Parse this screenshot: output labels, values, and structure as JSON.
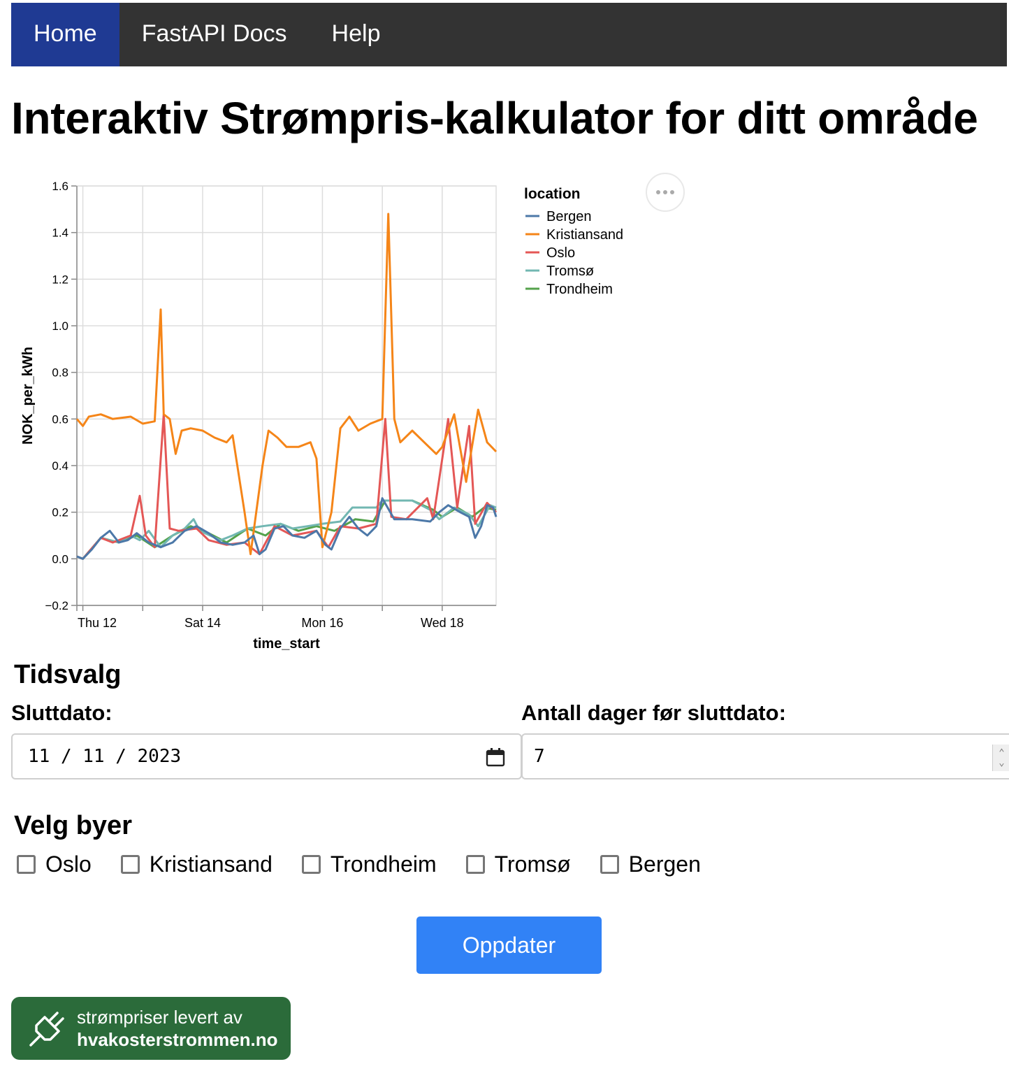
{
  "nav": {
    "items": [
      {
        "label": "Home",
        "active": true
      },
      {
        "label": "FastAPI Docs",
        "active": false
      },
      {
        "label": "Help",
        "active": false
      }
    ]
  },
  "page": {
    "title": "Interaktiv Strømpris-kalkulator for ditt område"
  },
  "chart_data": {
    "type": "line",
    "xlabel": "time_start",
    "ylabel": "NOK_per_kWh",
    "ylim": [
      -0.2,
      1.6
    ],
    "yticks": [
      "−0.2",
      "0.0",
      "0.2",
      "0.4",
      "0.6",
      "0.8",
      "1.0",
      "1.2",
      "1.4",
      "1.6"
    ],
    "xticks": [
      "Thu 12",
      "Sat 14",
      "Mon 16",
      "Wed 18"
    ],
    "x_range_days": [
      11.9,
      18.9
    ],
    "grid": true,
    "legend_title": "location",
    "legend_placement": "right",
    "series": [
      {
        "name": "Bergen",
        "color": "#4c78a8",
        "points": [
          [
            11.9,
            0.01
          ],
          [
            12.0,
            0.0
          ],
          [
            12.15,
            0.04
          ],
          [
            12.3,
            0.09
          ],
          [
            12.45,
            0.12
          ],
          [
            12.6,
            0.07
          ],
          [
            12.75,
            0.08
          ],
          [
            12.9,
            0.11
          ],
          [
            13.1,
            0.07
          ],
          [
            13.3,
            0.05
          ],
          [
            13.5,
            0.07
          ],
          [
            13.7,
            0.12
          ],
          [
            13.9,
            0.14
          ],
          [
            14.1,
            0.11
          ],
          [
            14.3,
            0.07
          ],
          [
            14.5,
            0.06
          ],
          [
            14.7,
            0.07
          ],
          [
            14.85,
            0.1
          ],
          [
            14.95,
            0.02
          ],
          [
            15.05,
            0.04
          ],
          [
            15.2,
            0.13
          ],
          [
            15.35,
            0.14
          ],
          [
            15.5,
            0.1
          ],
          [
            15.7,
            0.09
          ],
          [
            15.9,
            0.12
          ],
          [
            16.05,
            0.06
          ],
          [
            16.15,
            0.04
          ],
          [
            16.3,
            0.13
          ],
          [
            16.45,
            0.18
          ],
          [
            16.6,
            0.13
          ],
          [
            16.75,
            0.1
          ],
          [
            16.9,
            0.14
          ],
          [
            17.0,
            0.26
          ],
          [
            17.2,
            0.17
          ],
          [
            17.5,
            0.17
          ],
          [
            17.8,
            0.16
          ],
          [
            17.95,
            0.2
          ],
          [
            18.1,
            0.23
          ],
          [
            18.3,
            0.2
          ],
          [
            18.45,
            0.18
          ],
          [
            18.55,
            0.09
          ],
          [
            18.65,
            0.14
          ],
          [
            18.75,
            0.23
          ],
          [
            18.85,
            0.22
          ],
          [
            18.9,
            0.18
          ]
        ]
      },
      {
        "name": "Kristiansand",
        "color": "#f58518",
        "points": [
          [
            11.9,
            0.6
          ],
          [
            12.0,
            0.57
          ],
          [
            12.1,
            0.61
          ],
          [
            12.3,
            0.62
          ],
          [
            12.5,
            0.6
          ],
          [
            12.8,
            0.61
          ],
          [
            13.0,
            0.58
          ],
          [
            13.2,
            0.59
          ],
          [
            13.3,
            1.07
          ],
          [
            13.35,
            0.62
          ],
          [
            13.45,
            0.6
          ],
          [
            13.55,
            0.45
          ],
          [
            13.65,
            0.55
          ],
          [
            13.8,
            0.56
          ],
          [
            14.0,
            0.55
          ],
          [
            14.2,
            0.52
          ],
          [
            14.4,
            0.5
          ],
          [
            14.5,
            0.53
          ],
          [
            14.7,
            0.2
          ],
          [
            14.8,
            0.02
          ],
          [
            15.0,
            0.4
          ],
          [
            15.1,
            0.55
          ],
          [
            15.25,
            0.52
          ],
          [
            15.4,
            0.48
          ],
          [
            15.6,
            0.48
          ],
          [
            15.8,
            0.5
          ],
          [
            15.9,
            0.43
          ],
          [
            16.0,
            0.05
          ],
          [
            16.15,
            0.2
          ],
          [
            16.3,
            0.56
          ],
          [
            16.45,
            0.61
          ],
          [
            16.6,
            0.55
          ],
          [
            16.8,
            0.58
          ],
          [
            17.0,
            0.6
          ],
          [
            17.1,
            1.48
          ],
          [
            17.2,
            0.6
          ],
          [
            17.3,
            0.5
          ],
          [
            17.5,
            0.55
          ],
          [
            17.7,
            0.5
          ],
          [
            17.9,
            0.45
          ],
          [
            18.0,
            0.48
          ],
          [
            18.2,
            0.62
          ],
          [
            18.4,
            0.33
          ],
          [
            18.6,
            0.64
          ],
          [
            18.75,
            0.5
          ],
          [
            18.9,
            0.46
          ]
        ]
      },
      {
        "name": "Oslo",
        "color": "#e45756",
        "points": [
          [
            11.9,
            0.01
          ],
          [
            12.0,
            0.0
          ],
          [
            12.3,
            0.09
          ],
          [
            12.5,
            0.07
          ],
          [
            12.8,
            0.1
          ],
          [
            12.95,
            0.27
          ],
          [
            13.05,
            0.1
          ],
          [
            13.2,
            0.05
          ],
          [
            13.35,
            0.62
          ],
          [
            13.45,
            0.13
          ],
          [
            13.6,
            0.12
          ],
          [
            13.9,
            0.13
          ],
          [
            14.1,
            0.08
          ],
          [
            14.4,
            0.06
          ],
          [
            14.7,
            0.07
          ],
          [
            14.95,
            0.02
          ],
          [
            15.2,
            0.14
          ],
          [
            15.5,
            0.1
          ],
          [
            15.9,
            0.12
          ],
          [
            16.1,
            0.05
          ],
          [
            16.3,
            0.14
          ],
          [
            16.6,
            0.13
          ],
          [
            16.9,
            0.15
          ],
          [
            17.05,
            0.6
          ],
          [
            17.15,
            0.18
          ],
          [
            17.4,
            0.17
          ],
          [
            17.75,
            0.26
          ],
          [
            17.85,
            0.17
          ],
          [
            18.1,
            0.6
          ],
          [
            18.25,
            0.22
          ],
          [
            18.45,
            0.57
          ],
          [
            18.55,
            0.15
          ],
          [
            18.75,
            0.24
          ],
          [
            18.9,
            0.2
          ]
        ]
      },
      {
        "name": "Tromsø",
        "color": "#72b7b2",
        "points": [
          [
            11.9,
            0.01
          ],
          [
            12.0,
            0.0
          ],
          [
            12.3,
            0.09
          ],
          [
            12.6,
            0.07
          ],
          [
            12.8,
            0.1
          ],
          [
            12.95,
            0.08
          ],
          [
            13.1,
            0.12
          ],
          [
            13.3,
            0.05
          ],
          [
            13.5,
            0.1
          ],
          [
            13.7,
            0.13
          ],
          [
            13.85,
            0.17
          ],
          [
            13.95,
            0.12
          ],
          [
            14.3,
            0.08
          ],
          [
            14.5,
            0.1
          ],
          [
            14.75,
            0.13
          ],
          [
            15.0,
            0.14
          ],
          [
            15.3,
            0.15
          ],
          [
            15.5,
            0.13
          ],
          [
            15.75,
            0.14
          ],
          [
            16.0,
            0.15
          ],
          [
            16.3,
            0.16
          ],
          [
            16.5,
            0.22
          ],
          [
            16.9,
            0.22
          ],
          [
            17.0,
            0.25
          ],
          [
            17.5,
            0.25
          ],
          [
            17.8,
            0.21
          ],
          [
            17.95,
            0.17
          ],
          [
            18.2,
            0.22
          ],
          [
            18.45,
            0.19
          ],
          [
            18.6,
            0.14
          ],
          [
            18.8,
            0.23
          ],
          [
            18.9,
            0.22
          ]
        ]
      },
      {
        "name": "Trondheim",
        "color": "#54a24b",
        "points": [
          [
            11.9,
            0.01
          ],
          [
            12.0,
            0.0
          ],
          [
            12.3,
            0.09
          ],
          [
            12.6,
            0.07
          ],
          [
            12.9,
            0.1
          ],
          [
            13.2,
            0.05
          ],
          [
            13.5,
            0.1
          ],
          [
            13.8,
            0.14
          ],
          [
            14.1,
            0.11
          ],
          [
            14.4,
            0.07
          ],
          [
            14.75,
            0.13
          ],
          [
            15.05,
            0.1
          ],
          [
            15.3,
            0.15
          ],
          [
            15.6,
            0.12
          ],
          [
            15.9,
            0.14
          ],
          [
            16.2,
            0.12
          ],
          [
            16.55,
            0.17
          ],
          [
            16.85,
            0.16
          ],
          [
            17.05,
            0.25
          ],
          [
            17.5,
            0.25
          ],
          [
            17.85,
            0.21
          ],
          [
            18.0,
            0.18
          ],
          [
            18.25,
            0.22
          ],
          [
            18.5,
            0.18
          ],
          [
            18.7,
            0.22
          ],
          [
            18.9,
            0.21
          ]
        ]
      }
    ]
  },
  "time_selection": {
    "heading": "Tidsvalg",
    "end_date_label": "Sluttdato:",
    "end_date_value": "11 / 11 / 2023",
    "days_label": "Antall dager før sluttdato:",
    "days_value": "7"
  },
  "cities": {
    "heading": "Velg byer",
    "items": [
      "Oslo",
      "Kristiansand",
      "Trondheim",
      "Tromsø",
      "Bergen"
    ]
  },
  "update_button": "Oppdater",
  "badge": {
    "line1": "strømpriser levert av",
    "line2": "hvakosterstrommen.no"
  }
}
